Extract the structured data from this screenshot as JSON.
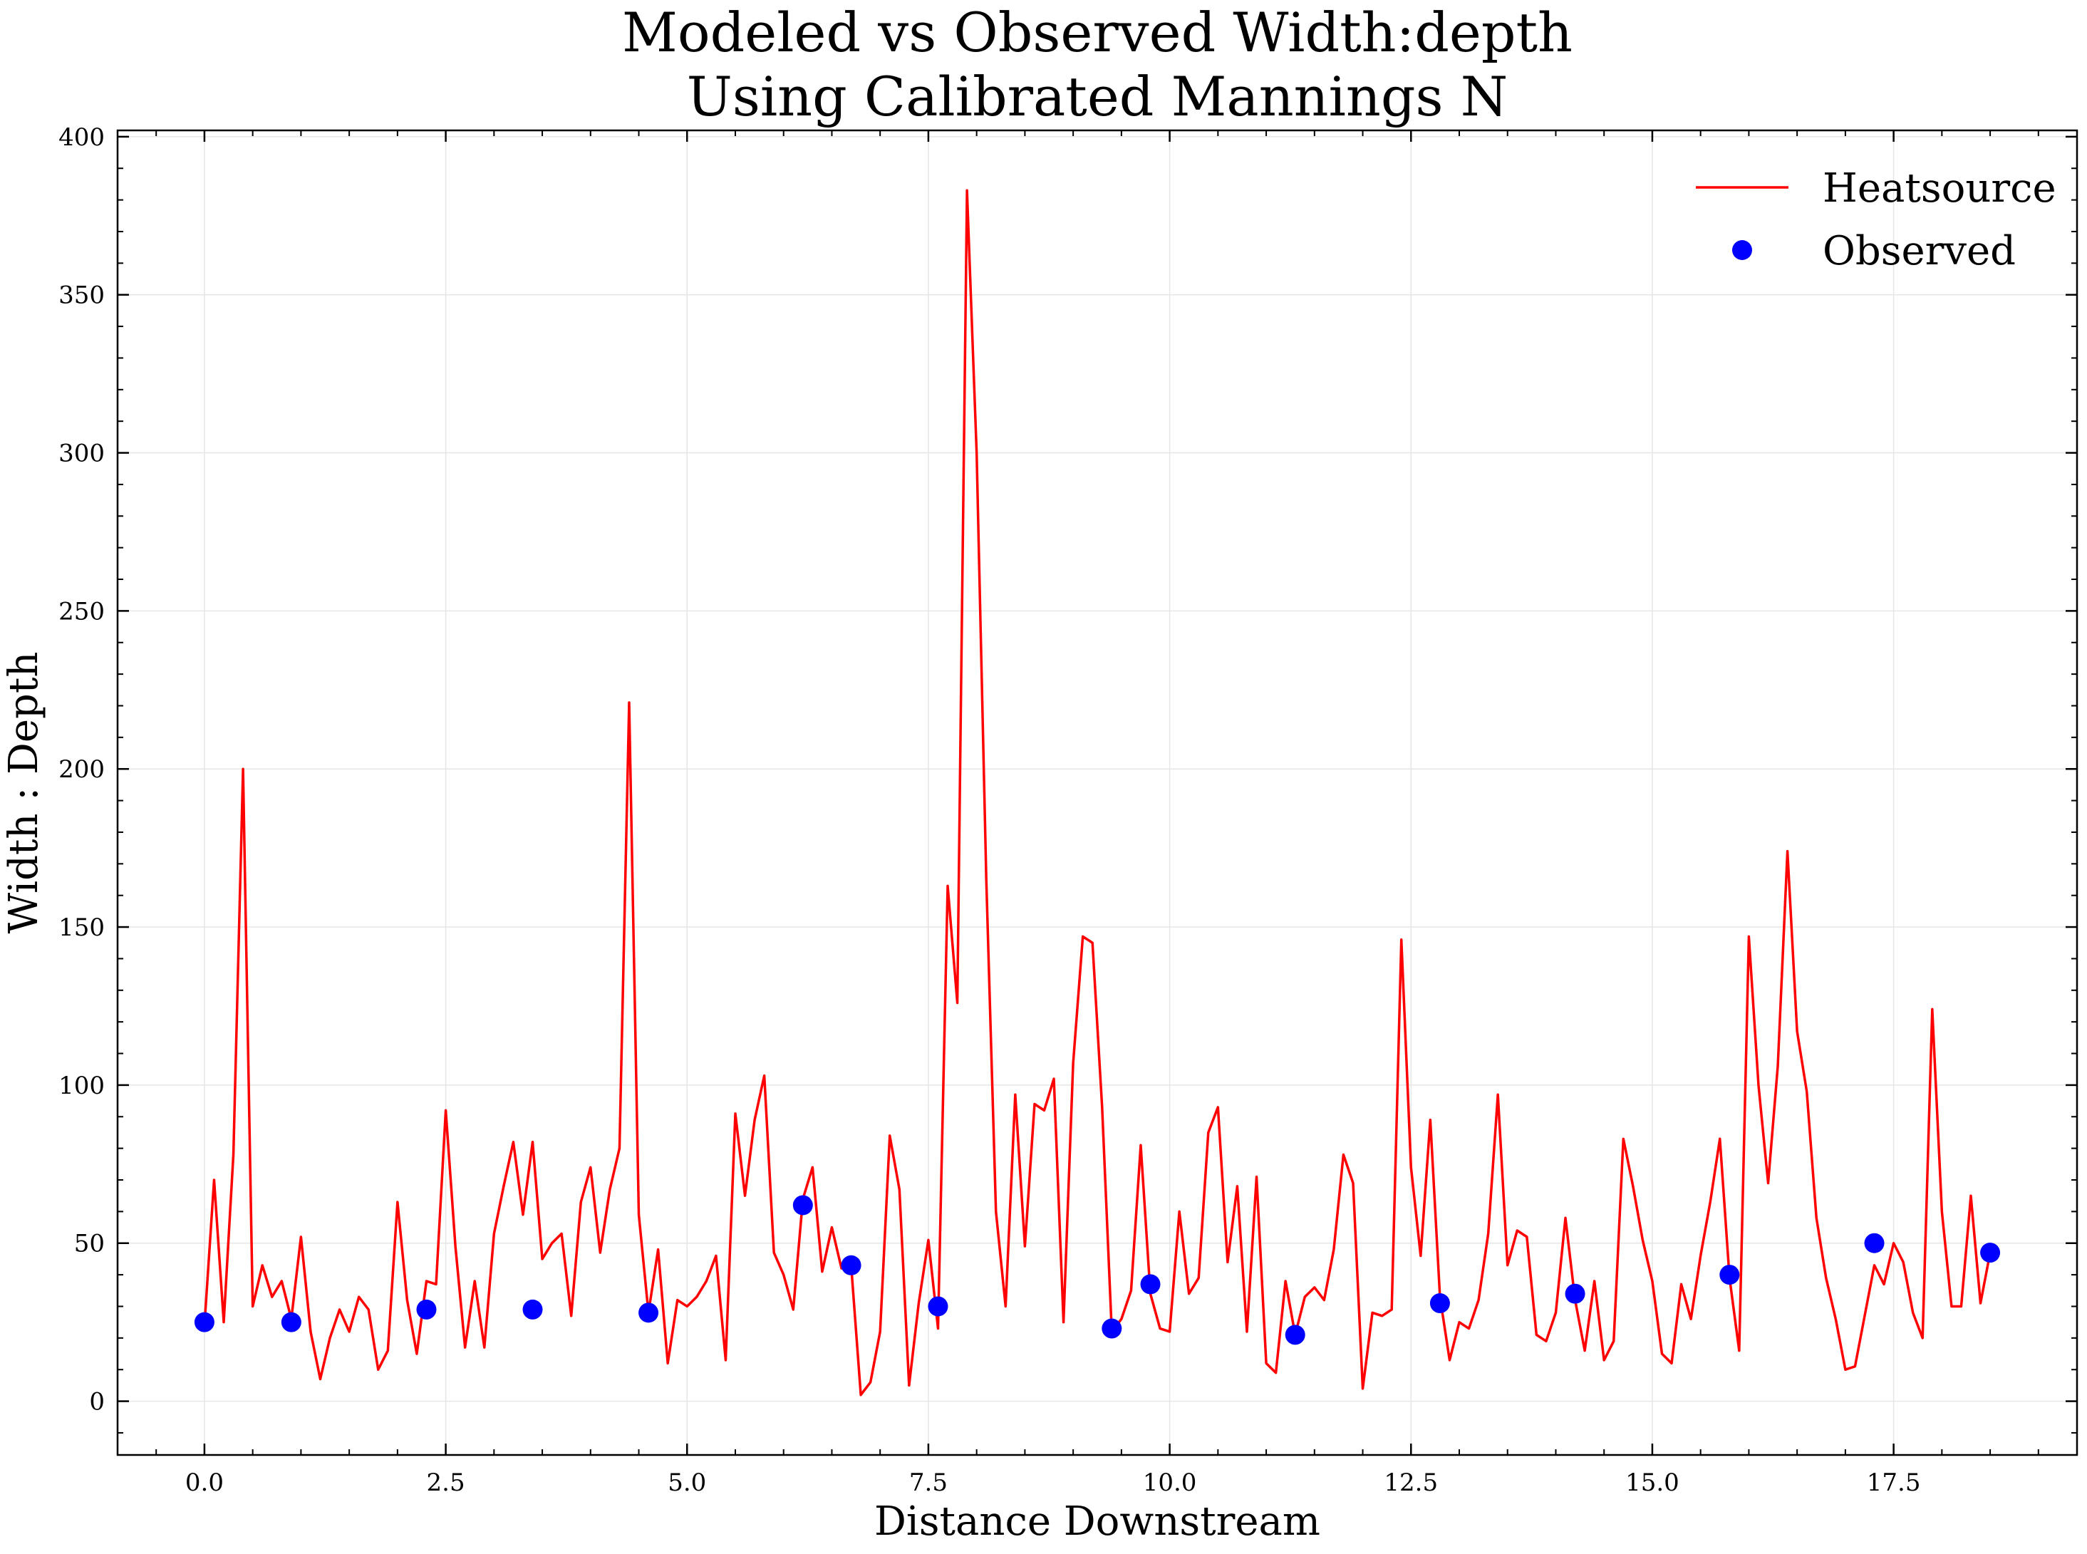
{
  "chart_data": {
    "type": "line",
    "title": "Modeled vs Observed Width:depth\nUsing Calibrated Mannings N",
    "xlabel": "Distance Downstream",
    "ylabel": "Width : Depth",
    "xlim": [
      -0.9,
      19.4
    ],
    "ylim": [
      -17,
      402
    ],
    "xticks": [
      0.0,
      2.5,
      5.0,
      7.5,
      10.0,
      12.5,
      15.0,
      17.5
    ],
    "xtick_labels": [
      "0.0",
      "2.5",
      "5.0",
      "7.5",
      "10.0",
      "12.5",
      "15.0",
      "17.5"
    ],
    "yticks": [
      0,
      50,
      100,
      150,
      200,
      250,
      300,
      350,
      400
    ],
    "ytick_labels": [
      "0",
      "50",
      "100",
      "150",
      "200",
      "250",
      "300",
      "350",
      "400"
    ],
    "grid": true,
    "legend_position": "top-right",
    "series": [
      {
        "name": "Heatsource",
        "kind": "line",
        "color": "#ff0000",
        "x_start": 0.0,
        "x_step": 0.1,
        "y": [
          24,
          70,
          25,
          78,
          200,
          30,
          43,
          33,
          38,
          26,
          52,
          22,
          7,
          20,
          29,
          22,
          33,
          29,
          10,
          16,
          63,
          32,
          15,
          38,
          37,
          92,
          49,
          17,
          38,
          17,
          53,
          68,
          82,
          59,
          82,
          45,
          50,
          53,
          27,
          63,
          74,
          47,
          67,
          80,
          221,
          59,
          28,
          48,
          12,
          32,
          30,
          33,
          38,
          46,
          13,
          91,
          65,
          89,
          103,
          47,
          40,
          29,
          64,
          74,
          41,
          55,
          42,
          43,
          2,
          6,
          22,
          84,
          67,
          5,
          31,
          51,
          23,
          163,
          126,
          383,
          300,
          165,
          60,
          30,
          97,
          49,
          94,
          92,
          102,
          25,
          107,
          147,
          145,
          93,
          22,
          26,
          35,
          81,
          34,
          23,
          22,
          60,
          34,
          39,
          85,
          93,
          44,
          68,
          22,
          71,
          12,
          9,
          38,
          21,
          33,
          36,
          32,
          48,
          78,
          69,
          4,
          28,
          27,
          29,
          146,
          74,
          46,
          89,
          33,
          13,
          25,
          23,
          32,
          53,
          97,
          43,
          54,
          52,
          21,
          19,
          28,
          58,
          32,
          16,
          38,
          13,
          19,
          83,
          68,
          51,
          38,
          15,
          12,
          37,
          26,
          46,
          63,
          83,
          39,
          16,
          147,
          100,
          69,
          106,
          174,
          117,
          98,
          58,
          39,
          26,
          10,
          11,
          27,
          43,
          37,
          50,
          44,
          28,
          20,
          124,
          60,
          30,
          30,
          65,
          31,
          47
        ]
      },
      {
        "name": "Observed",
        "kind": "scatter",
        "color": "#0000ff",
        "points": [
          [
            0.0,
            25
          ],
          [
            0.9,
            25
          ],
          [
            2.3,
            29
          ],
          [
            3.4,
            29
          ],
          [
            4.6,
            28
          ],
          [
            6.2,
            62
          ],
          [
            6.7,
            43
          ],
          [
            7.6,
            30
          ],
          [
            9.4,
            23
          ],
          [
            9.8,
            37
          ],
          [
            11.3,
            21
          ],
          [
            12.8,
            31
          ],
          [
            14.2,
            34
          ],
          [
            15.8,
            40
          ],
          [
            17.3,
            50
          ],
          [
            18.5,
            47
          ]
        ]
      }
    ]
  }
}
